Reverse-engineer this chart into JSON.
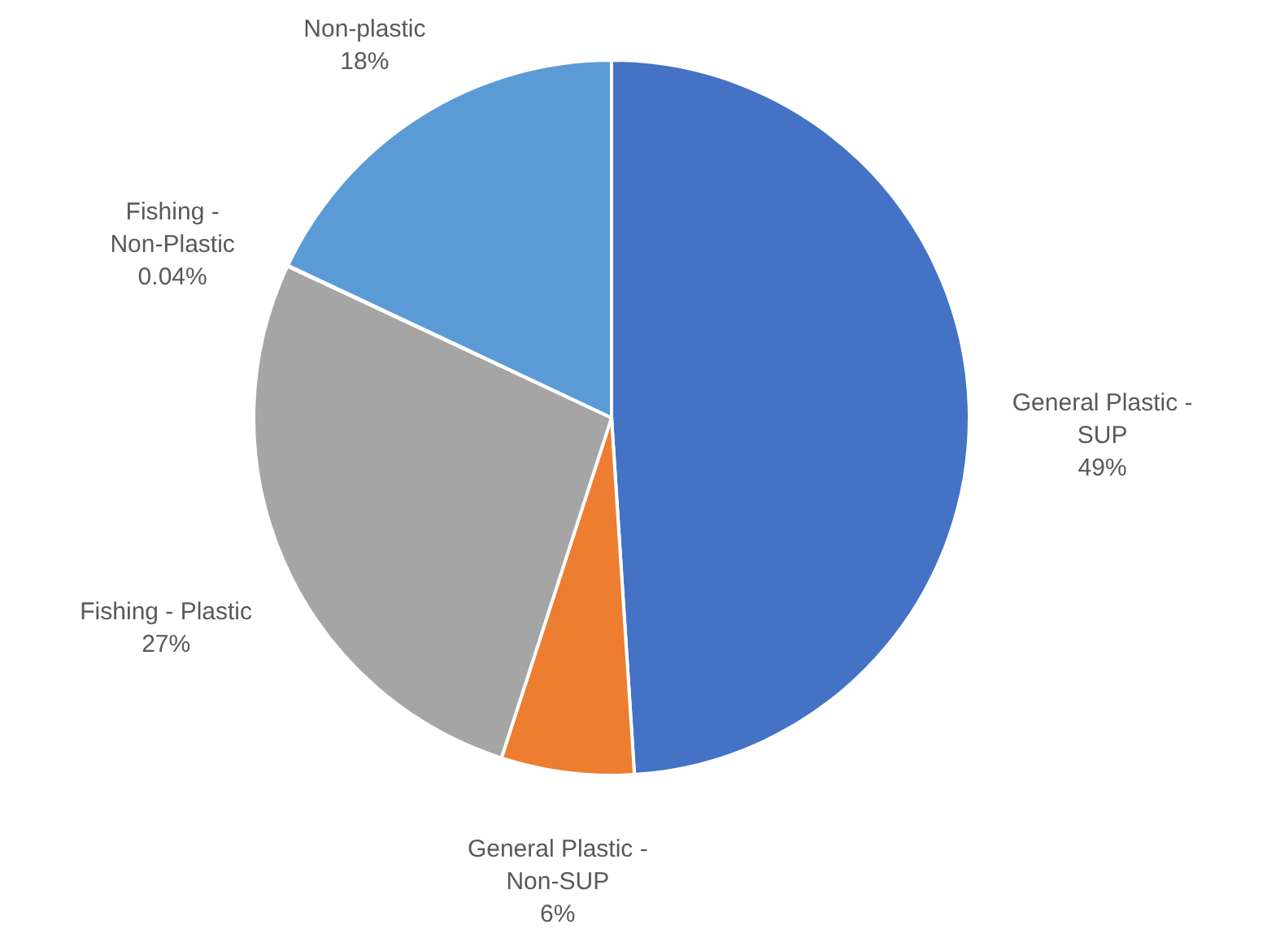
{
  "chart_data": {
    "type": "pie",
    "categories": [
      "General Plastic - SUP",
      "General Plastic - Non-SUP",
      "Fishing - Plastic",
      "Fishing - Non-Plastic",
      "Non-plastic"
    ],
    "values": [
      49,
      6,
      27,
      0.04,
      18
    ],
    "value_labels": [
      "49%",
      "6%",
      "27%",
      "0.04%",
      "18%"
    ],
    "colors": [
      "#4472c4",
      "#ed7d31",
      "#a5a5a5",
      "#ffc000",
      "#5b9bd5"
    ]
  }
}
